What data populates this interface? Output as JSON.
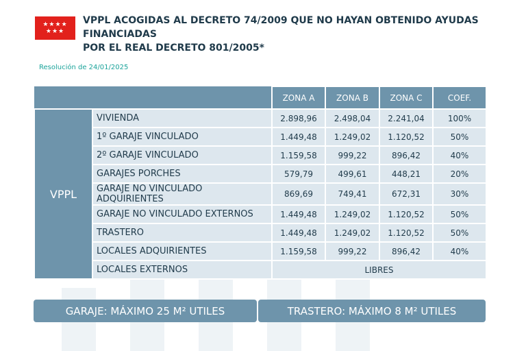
{
  "header": {
    "logo_stars": "★★★★\n★★★",
    "title_line1": "VPPL ACOGIDAS AL DECRETO 74/2009 QUE NO HAYAN OBTENIDO AYUDAS FINANCIADAS",
    "title_line2": "POR EL REAL DECRETO 801/2005*",
    "resolution": "Resolución de 24/01/2025"
  },
  "table": {
    "group_label": "VPPL",
    "columns": [
      "ZONA A",
      "ZONA B",
      "ZONA C",
      "COEF."
    ],
    "rows": [
      {
        "label": "VIVIENDA",
        "a": "2.898,96",
        "b": "2.498,04",
        "c": "2.241,04",
        "coef": "100%"
      },
      {
        "label": "1º GARAJE VINCULADO",
        "a": "1.449,48",
        "b": "1.249,02",
        "c": "1.120,52",
        "coef": "50%"
      },
      {
        "label": "2º GARAJE VINCULADO",
        "a": "1.159,58",
        "b": "999,22",
        "c": "896,42",
        "coef": "40%"
      },
      {
        "label": "GARAJES PORCHES",
        "a": "579,79",
        "b": "499,61",
        "c": "448,21",
        "coef": "20%"
      },
      {
        "label": "GARAJE NO VINCULADO ADQUIRIENTES",
        "a": "869,69",
        "b": "749,41",
        "c": "672,31",
        "coef": "30%"
      },
      {
        "label": "GARAJE NO VINCULADO EXTERNOS",
        "a": "1.449,48",
        "b": "1.249,02",
        "c": "1.120,52",
        "coef": "50%"
      },
      {
        "label": "TRASTERO",
        "a": "1.449,48",
        "b": "1.249,02",
        "c": "1.120,52",
        "coef": "50%"
      },
      {
        "label": "LOCALES ADQUIRIENTES",
        "a": "1.159,58",
        "b": "999,22",
        "c": "896,42",
        "coef": "40%"
      }
    ],
    "last_row": {
      "label": "LOCALES EXTERNOS",
      "value": "LIBRES"
    }
  },
  "footer": {
    "garaje": "GARAJE: MÁXIMO 25 M² UTILES",
    "trastero": "TRASTERO: MÁXIMO 8 M² UTILES"
  },
  "colors": {
    "header_bg": "#6e94ab",
    "cell_bg": "#dde7ee",
    "logo_red": "#e2211c",
    "resolution_teal": "#1aa39a"
  }
}
